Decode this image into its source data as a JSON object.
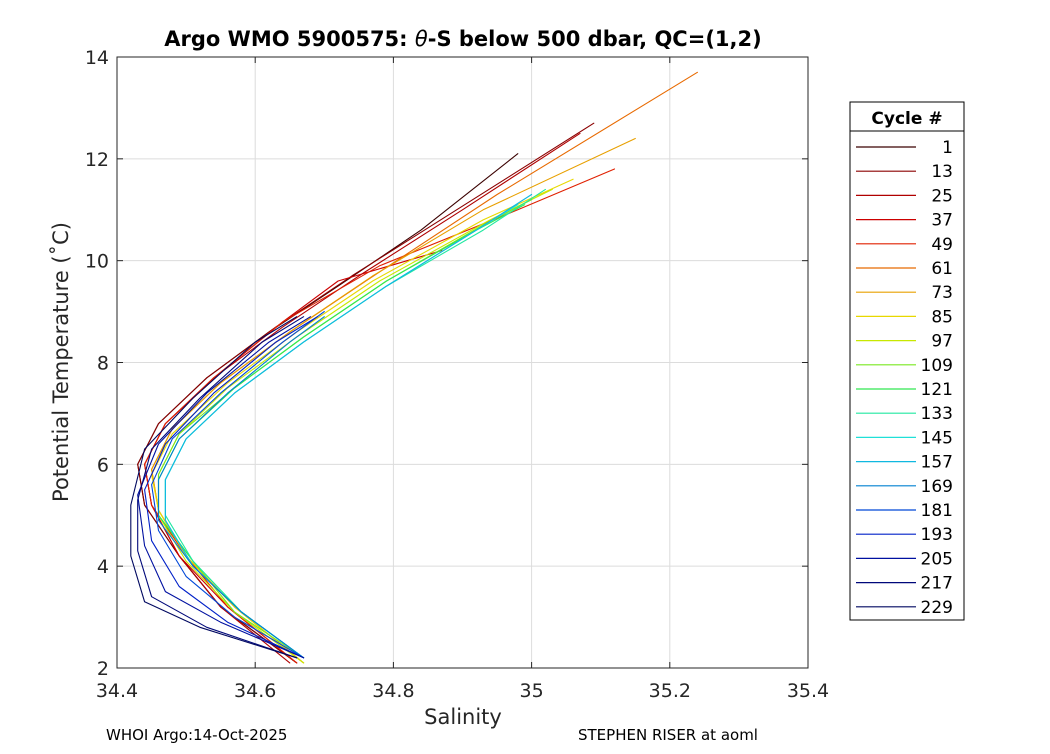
{
  "chart_data": {
    "type": "line",
    "title_prefix": "Argo WMO 5900575: ",
    "title_symbol": "θ",
    "title_suffix": "-S below 500 dbar,  QC=(1,2)",
    "xlabel": "Salinity",
    "ylabel": "Potential Temperature (˚C)",
    "xlim": [
      34.4,
      35.4
    ],
    "ylim": [
      2,
      14
    ],
    "x_ticks": [
      "34.4",
      "34.6",
      "34.8",
      "35",
      "35.2",
      "35.4"
    ],
    "y_ticks": [
      "2",
      "4",
      "6",
      "8",
      "10",
      "12",
      "14"
    ],
    "grid": true,
    "legend": {
      "title": "Cycle #",
      "placement": "outside-right",
      "entries": [
        {
          "label": "1",
          "color": "#3a0000"
        },
        {
          "label": "13",
          "color": "#8b0000"
        },
        {
          "label": "25",
          "color": "#b00000"
        },
        {
          "label": "37",
          "color": "#cc0000"
        },
        {
          "label": "49",
          "color": "#e02000"
        },
        {
          "label": "61",
          "color": "#e86a00"
        },
        {
          "label": "73",
          "color": "#e8a000"
        },
        {
          "label": "85",
          "color": "#e8d800"
        },
        {
          "label": "97",
          "color": "#c8e800"
        },
        {
          "label": "109",
          "color": "#7ae820"
        },
        {
          "label": "121",
          "color": "#30e850"
        },
        {
          "label": "133",
          "color": "#20e8a0"
        },
        {
          "label": "145",
          "color": "#20e0d8"
        },
        {
          "label": "157",
          "color": "#10b8e0"
        },
        {
          "label": "169",
          "color": "#0080d0"
        },
        {
          "label": "181",
          "color": "#0048d8"
        },
        {
          "label": "193",
          "color": "#0020c8"
        },
        {
          "label": "205",
          "color": "#0010a0"
        },
        {
          "label": "217",
          "color": "#00087a"
        },
        {
          "label": "229",
          "color": "#000860"
        }
      ]
    },
    "profiles": [
      {
        "cycle": 1,
        "points": [
          [
            34.66,
            2.1
          ],
          [
            34.55,
            3.2
          ],
          [
            34.49,
            4.2
          ],
          [
            34.44,
            5.2
          ],
          [
            34.43,
            6.0
          ],
          [
            34.46,
            6.8
          ],
          [
            34.53,
            7.7
          ],
          [
            34.62,
            8.6
          ],
          [
            34.72,
            9.5
          ],
          [
            34.84,
            10.6
          ],
          [
            34.98,
            12.1
          ]
        ]
      },
      {
        "cycle": 13,
        "points": [
          [
            34.66,
            2.1
          ],
          [
            34.55,
            3.2
          ],
          [
            34.49,
            4.2
          ],
          [
            34.44,
            5.2
          ],
          [
            34.43,
            6.0
          ],
          [
            34.46,
            6.8
          ],
          [
            34.53,
            7.7
          ],
          [
            34.63,
            8.7
          ],
          [
            34.74,
            9.7
          ],
          [
            34.88,
            10.9
          ],
          [
            35.09,
            12.7
          ]
        ]
      },
      {
        "cycle": 25,
        "points": [
          [
            34.65,
            2.1
          ],
          [
            34.55,
            3.2
          ],
          [
            34.49,
            4.2
          ],
          [
            34.45,
            5.2
          ],
          [
            34.44,
            6.0
          ],
          [
            34.47,
            6.8
          ],
          [
            34.54,
            7.7
          ],
          [
            34.64,
            8.7
          ],
          [
            34.75,
            9.7
          ],
          [
            34.9,
            11.0
          ],
          [
            35.07,
            12.5
          ]
        ]
      },
      {
        "cycle": 37,
        "points": [
          [
            34.66,
            2.1
          ],
          [
            34.56,
            3.2
          ],
          [
            34.49,
            4.2
          ],
          [
            34.45,
            5.2
          ],
          [
            34.44,
            6.0
          ],
          [
            34.47,
            6.8
          ],
          [
            34.55,
            7.8
          ],
          [
            34.64,
            8.8
          ],
          [
            34.72,
            9.6
          ],
          [
            34.87,
            10.2
          ]
        ]
      },
      {
        "cycle": 49,
        "points": [
          [
            34.66,
            2.1
          ],
          [
            34.56,
            3.2
          ],
          [
            34.5,
            4.2
          ],
          [
            34.45,
            5.2
          ],
          [
            34.44,
            6.0
          ],
          [
            34.47,
            6.8
          ],
          [
            34.54,
            7.7
          ],
          [
            34.64,
            8.8
          ],
          [
            34.78,
            9.9
          ],
          [
            34.98,
            11.0
          ],
          [
            35.12,
            11.8
          ]
        ]
      },
      {
        "cycle": 61,
        "points": [
          [
            34.67,
            2.1
          ],
          [
            34.57,
            3.2
          ],
          [
            34.5,
            4.2
          ],
          [
            34.46,
            5.1
          ],
          [
            34.45,
            5.9
          ],
          [
            34.48,
            6.7
          ],
          [
            34.55,
            7.6
          ],
          [
            34.65,
            8.6
          ],
          [
            34.76,
            9.6
          ],
          [
            34.95,
            11.3
          ],
          [
            35.24,
            13.7
          ]
        ]
      },
      {
        "cycle": 73,
        "points": [
          [
            34.67,
            2.1
          ],
          [
            34.57,
            3.2
          ],
          [
            34.5,
            4.2
          ],
          [
            34.46,
            5.1
          ],
          [
            34.45,
            5.9
          ],
          [
            34.48,
            6.7
          ],
          [
            34.55,
            7.6
          ],
          [
            34.65,
            8.6
          ],
          [
            34.77,
            9.7
          ],
          [
            34.93,
            11.0
          ],
          [
            35.15,
            12.4
          ]
        ]
      },
      {
        "cycle": 85,
        "points": [
          [
            34.67,
            2.1
          ],
          [
            34.57,
            3.2
          ],
          [
            34.5,
            4.2
          ],
          [
            34.46,
            5.1
          ],
          [
            34.45,
            5.8
          ],
          [
            34.48,
            6.6
          ],
          [
            34.56,
            7.6
          ],
          [
            34.66,
            8.6
          ],
          [
            34.77,
            9.6
          ],
          [
            34.93,
            10.8
          ],
          [
            35.06,
            11.6
          ]
        ]
      },
      {
        "cycle": 97,
        "points": [
          [
            34.67,
            2.1
          ],
          [
            34.57,
            3.1
          ],
          [
            34.5,
            4.1
          ],
          [
            34.46,
            5.0
          ],
          [
            34.46,
            5.8
          ],
          [
            34.49,
            6.6
          ],
          [
            34.56,
            7.5
          ],
          [
            34.66,
            8.5
          ],
          [
            34.78,
            9.6
          ],
          [
            34.94,
            10.8
          ],
          [
            35.03,
            11.4
          ]
        ]
      },
      {
        "cycle": 109,
        "points": [
          [
            34.67,
            2.2
          ],
          [
            34.57,
            3.1
          ],
          [
            34.51,
            4.1
          ],
          [
            34.46,
            5.0
          ],
          [
            34.46,
            5.8
          ],
          [
            34.49,
            6.6
          ],
          [
            34.57,
            7.5
          ],
          [
            34.67,
            8.5
          ],
          [
            34.79,
            9.6
          ],
          [
            34.93,
            10.7
          ],
          [
            35.0,
            11.2
          ]
        ]
      },
      {
        "cycle": 121,
        "points": [
          [
            34.67,
            2.2
          ],
          [
            34.58,
            3.1
          ],
          [
            34.51,
            4.1
          ],
          [
            34.46,
            5.0
          ],
          [
            34.46,
            5.7
          ],
          [
            34.49,
            6.5
          ],
          [
            34.57,
            7.5
          ],
          [
            34.67,
            8.5
          ],
          [
            34.79,
            9.6
          ],
          [
            34.92,
            10.6
          ],
          [
            34.99,
            11.1
          ]
        ]
      },
      {
        "cycle": 133,
        "points": [
          [
            34.67,
            2.2
          ],
          [
            34.58,
            3.1
          ],
          [
            34.51,
            4.1
          ],
          [
            34.47,
            5.0
          ],
          [
            34.47,
            5.7
          ],
          [
            34.5,
            6.5
          ],
          [
            34.57,
            7.4
          ],
          [
            34.67,
            8.4
          ],
          [
            34.79,
            9.5
          ],
          [
            34.93,
            10.6
          ],
          [
            35.02,
            11.4
          ]
        ]
      },
      {
        "cycle": 145,
        "points": [
          [
            34.67,
            2.2
          ],
          [
            34.58,
            3.1
          ],
          [
            34.51,
            4.0
          ],
          [
            34.47,
            4.9
          ],
          [
            34.47,
            5.7
          ],
          [
            34.5,
            6.5
          ],
          [
            34.57,
            7.4
          ],
          [
            34.67,
            8.4
          ],
          [
            34.79,
            9.5
          ],
          [
            34.92,
            10.6
          ],
          [
            34.98,
            11.1
          ]
        ]
      },
      {
        "cycle": 157,
        "points": [
          [
            34.67,
            2.2
          ],
          [
            34.58,
            3.1
          ],
          [
            34.51,
            4.0
          ],
          [
            34.47,
            4.9
          ],
          [
            34.47,
            5.7
          ],
          [
            34.5,
            6.5
          ],
          [
            34.57,
            7.4
          ],
          [
            34.67,
            8.4
          ],
          [
            34.79,
            9.5
          ],
          [
            34.92,
            10.6
          ],
          [
            35.0,
            11.3
          ]
        ]
      },
      {
        "cycle": 169,
        "points": [
          [
            34.67,
            2.2
          ],
          [
            34.58,
            3.1
          ],
          [
            34.51,
            4.0
          ],
          [
            34.46,
            4.9
          ],
          [
            34.46,
            5.7
          ],
          [
            34.49,
            6.5
          ],
          [
            34.56,
            7.4
          ],
          [
            34.65,
            8.4
          ],
          [
            34.7,
            8.9
          ]
        ]
      },
      {
        "cycle": 181,
        "points": [
          [
            34.67,
            2.2
          ],
          [
            34.57,
            3.0
          ],
          [
            34.5,
            3.8
          ],
          [
            34.46,
            4.7
          ],
          [
            34.45,
            5.6
          ],
          [
            34.48,
            6.5
          ],
          [
            34.55,
            7.4
          ],
          [
            34.64,
            8.4
          ],
          [
            34.7,
            9.0
          ]
        ]
      },
      {
        "cycle": 193,
        "points": [
          [
            34.67,
            2.2
          ],
          [
            34.56,
            2.9
          ],
          [
            34.49,
            3.6
          ],
          [
            34.45,
            4.5
          ],
          [
            34.44,
            5.5
          ],
          [
            34.47,
            6.4
          ],
          [
            34.54,
            7.4
          ],
          [
            34.63,
            8.4
          ],
          [
            34.69,
            8.9
          ]
        ]
      },
      {
        "cycle": 205,
        "points": [
          [
            34.67,
            2.2
          ],
          [
            34.55,
            2.9
          ],
          [
            34.47,
            3.5
          ],
          [
            34.44,
            4.4
          ],
          [
            34.43,
            5.4
          ],
          [
            34.46,
            6.4
          ],
          [
            34.53,
            7.4
          ],
          [
            34.62,
            8.4
          ],
          [
            34.68,
            8.9
          ]
        ]
      },
      {
        "cycle": 217,
        "points": [
          [
            34.66,
            2.2
          ],
          [
            34.53,
            2.8
          ],
          [
            34.45,
            3.4
          ],
          [
            34.43,
            4.3
          ],
          [
            34.43,
            5.3
          ],
          [
            34.45,
            6.3
          ],
          [
            34.52,
            7.3
          ],
          [
            34.61,
            8.4
          ],
          [
            34.67,
            8.9
          ]
        ]
      },
      {
        "cycle": 229,
        "points": [
          [
            34.66,
            2.2
          ],
          [
            34.52,
            2.8
          ],
          [
            34.44,
            3.3
          ],
          [
            34.42,
            4.2
          ],
          [
            34.42,
            5.2
          ],
          [
            34.44,
            6.3
          ],
          [
            34.51,
            7.3
          ],
          [
            34.6,
            8.4
          ],
          [
            34.66,
            8.9
          ]
        ]
      }
    ]
  },
  "footer": {
    "left": "WHOI Argo:14-Oct-2025",
    "right": "STEPHEN RISER at aoml"
  }
}
